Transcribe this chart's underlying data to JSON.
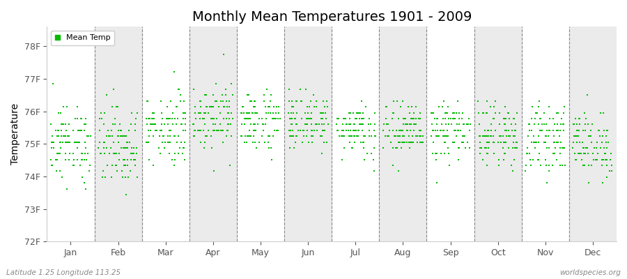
{
  "title": "Monthly Mean Temperatures 1901 - 2009",
  "ylabel": "Temperature",
  "xlabel_bottom": "Latitude 1.25 Longitude 113.25",
  "xlabel_right": "worldspecies.org",
  "months": [
    "Jan",
    "Feb",
    "Mar",
    "Apr",
    "May",
    "Jun",
    "Jul",
    "Aug",
    "Sep",
    "Oct",
    "Nov",
    "Dec"
  ],
  "ylim": [
    72.0,
    78.6
  ],
  "yticks": [
    72,
    73,
    74,
    75,
    76,
    77,
    78
  ],
  "ytick_labels": [
    "72F",
    "73F",
    "74F",
    "75F",
    "76F",
    "77F",
    "78F"
  ],
  "dot_color": "#00bb00",
  "dot_size": 3,
  "bg_color": "#ffffff",
  "alt_band_color": "#ebebeb",
  "legend_label": "Mean Temp",
  "title_fontsize": 14,
  "axis_fontsize": 10,
  "tick_fontsize": 9,
  "n_years": 109,
  "monthly_base": [
    75.0,
    75.0,
    75.5,
    75.9,
    75.7,
    75.7,
    75.5,
    75.4,
    75.4,
    75.3,
    75.2,
    75.0
  ],
  "monthly_std": [
    0.55,
    0.6,
    0.55,
    0.5,
    0.45,
    0.42,
    0.4,
    0.42,
    0.42,
    0.45,
    0.48,
    0.5
  ],
  "quantize_step": 0.18
}
